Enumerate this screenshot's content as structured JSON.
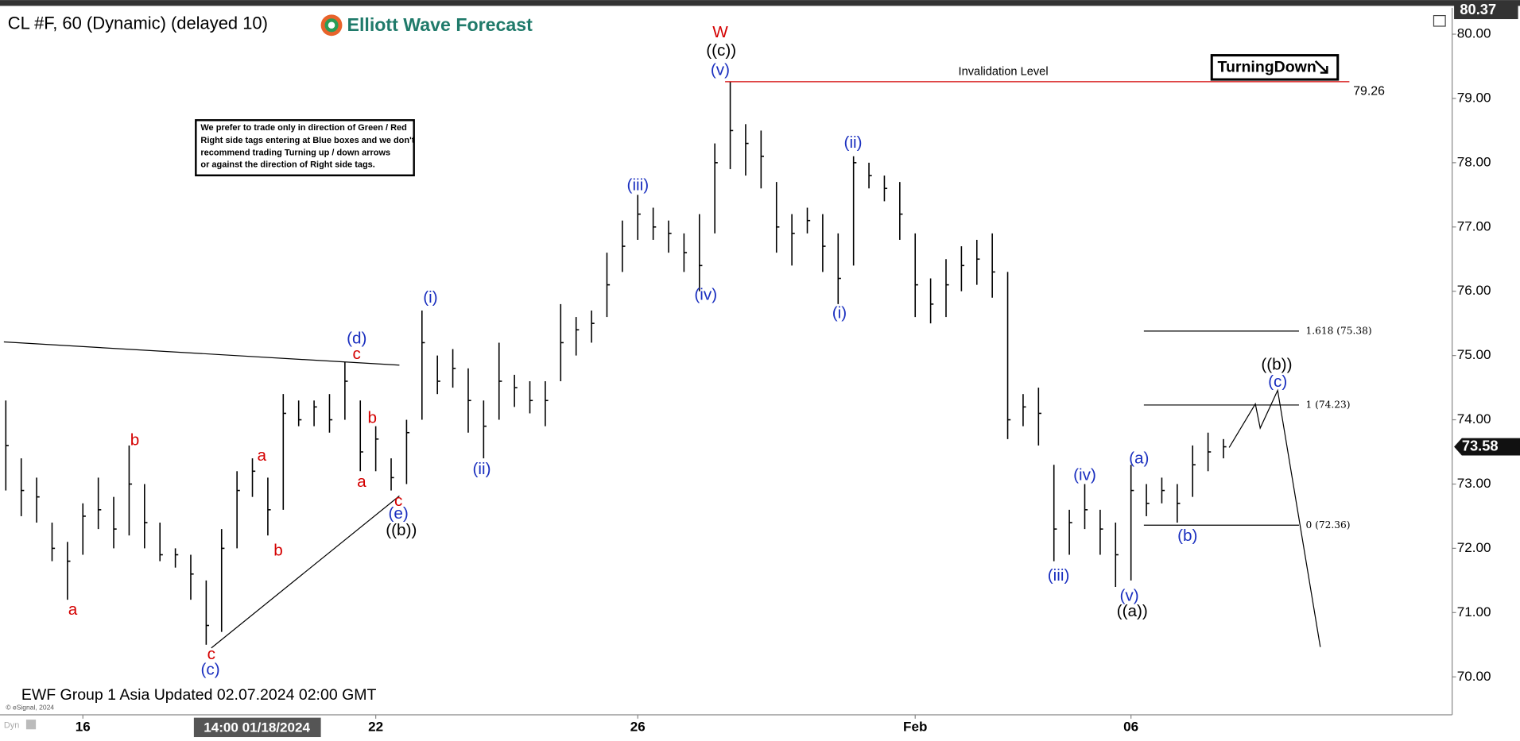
{
  "chart_data": {
    "type": "ohlc",
    "title": "CL #F, 60 (Dynamic) (delayed 10)",
    "brand": "Elliott Wave Forecast",
    "note": [
      "We prefer to trade only in direction of Green / Red",
      "Right side tags entering at Blue boxes and we don't",
      "recommend trading Turning up / down arrows",
      "or against the direction of Right side tags."
    ],
    "badge": "TurningDown",
    "footer": "EWF Group 1 Asia Updated 02.07.2024 02:00 GMT",
    "copyright": "© eSignal, 2024",
    "crosshair_label": "14:00 01/18/2024",
    "mode_label": "Dyn",
    "color": "#000000",
    "categories": [
      null,
      null,
      null,
      null,
      null,
      "16",
      null,
      null,
      null,
      null,
      null,
      null,
      null,
      null,
      null,
      null,
      null,
      null,
      null,
      null,
      null,
      null,
      null,
      null,
      "22",
      null,
      null,
      null,
      null,
      null,
      null,
      null,
      null,
      null,
      null,
      null,
      null,
      null,
      null,
      null,
      null,
      "26",
      null,
      null,
      null,
      null,
      null,
      null,
      null,
      null,
      null,
      null,
      null,
      null,
      null,
      null,
      null,
      null,
      null,
      "Feb",
      null,
      null,
      null,
      null,
      null,
      null,
      null,
      null,
      null,
      null,
      null,
      null,
      null,
      "06",
      null,
      null,
      null,
      null,
      null,
      null
    ],
    "high": [
      74.3,
      73.4,
      73.1,
      72.4,
      72.1,
      72.7,
      73.1,
      72.8,
      73.6,
      73.0,
      72.4,
      72.0,
      71.9,
      71.5,
      72.3,
      73.2,
      73.4,
      73.1,
      74.4,
      74.3,
      74.3,
      74.4,
      74.9,
      74.3,
      73.9,
      73.4,
      74.0,
      75.7,
      75.0,
      75.1,
      74.8,
      74.3,
      75.2,
      74.7,
      74.6,
      74.6,
      75.8,
      75.6,
      75.7,
      76.6,
      77.1,
      77.5,
      77.3,
      77.1,
      76.9,
      77.2,
      78.3,
      79.26,
      78.6,
      78.5,
      77.7,
      77.2,
      77.3,
      77.2,
      76.9,
      78.1,
      78.0,
      77.8,
      77.7,
      76.9,
      76.2,
      76.5,
      76.7,
      76.8,
      76.9,
      76.3,
      74.4,
      74.5,
      73.3,
      72.6,
      73.0,
      72.6,
      72.4,
      73.3,
      73.0,
      73.1,
      73.0,
      73.6,
      73.8,
      73.7
    ],
    "low": [
      72.9,
      72.5,
      72.4,
      71.8,
      71.2,
      71.9,
      72.3,
      72.0,
      72.2,
      72.0,
      71.8,
      71.7,
      71.2,
      70.5,
      70.7,
      72.0,
      72.8,
      72.2,
      72.6,
      73.9,
      73.9,
      73.8,
      74.0,
      73.2,
      73.2,
      72.9,
      73.0,
      74.0,
      74.4,
      74.5,
      73.8,
      73.4,
      74.0,
      74.2,
      74.1,
      73.9,
      74.6,
      75.0,
      75.2,
      75.6,
      76.3,
      76.8,
      76.8,
      76.6,
      76.3,
      76.0,
      76.9,
      77.9,
      77.8,
      77.6,
      76.6,
      76.4,
      76.9,
      76.3,
      75.8,
      76.4,
      77.6,
      77.4,
      76.8,
      75.6,
      75.5,
      75.6,
      76.0,
      76.1,
      75.9,
      73.7,
      73.9,
      73.6,
      71.8,
      71.9,
      72.3,
      71.9,
      71.4,
      71.5,
      72.5,
      72.7,
      72.4,
      72.8,
      73.2,
      73.4
    ],
    "close": [
      73.6,
      72.9,
      72.8,
      72.0,
      71.8,
      72.5,
      72.6,
      72.3,
      73.0,
      72.4,
      71.9,
      71.9,
      71.6,
      70.8,
      72.0,
      72.9,
      73.2,
      72.6,
      74.1,
      74.0,
      74.2,
      74.0,
      74.6,
      73.5,
      73.7,
      73.1,
      73.8,
      75.2,
      74.6,
      74.8,
      74.3,
      73.9,
      74.6,
      74.5,
      74.3,
      74.3,
      75.2,
      75.4,
      75.5,
      76.1,
      76.7,
      77.2,
      77.0,
      76.9,
      76.6,
      76.4,
      78.0,
      78.5,
      78.3,
      78.1,
      77.0,
      76.9,
      77.1,
      76.7,
      76.2,
      78.0,
      77.8,
      77.6,
      77.2,
      76.1,
      75.8,
      76.1,
      76.4,
      76.5,
      76.3,
      74.0,
      74.2,
      74.1,
      72.3,
      72.4,
      72.6,
      72.3,
      71.9,
      72.9,
      72.7,
      72.9,
      72.7,
      73.3,
      73.5,
      73.58
    ],
    "ylim": [
      69.41,
      80.41
    ],
    "yticks": [
      {
        "value": 70,
        "label": "70.00"
      },
      {
        "value": 71,
        "label": "71.00"
      },
      {
        "value": 72,
        "label": "72.00"
      },
      {
        "value": 73,
        "label": "73.00"
      },
      {
        "value": 74,
        "label": "74.00"
      },
      {
        "value": 75,
        "label": "75.00"
      },
      {
        "value": 76,
        "label": "76.00"
      },
      {
        "value": 77,
        "label": "77.00"
      },
      {
        "value": 78,
        "label": "78.00"
      },
      {
        "value": 79,
        "label": "79.00"
      },
      {
        "value": 80,
        "label": "80.00"
      }
    ],
    "top_price": 80.37,
    "invalidation": {
      "value": 79.26,
      "text": "Invalidation Level"
    },
    "fib_levels": [
      {
        "value": 75.38,
        "label": "1.618 (75.38)"
      },
      {
        "value": 74.23,
        "label": "1 (74.23)"
      },
      {
        "value": 72.36,
        "label": "0 (72.36)"
      }
    ],
    "annotations": [
      {
        "text": "a",
        "color": "#d40000"
      },
      {
        "text": "b",
        "color": "#d40000"
      },
      {
        "text": "c",
        "color": "#d40000"
      },
      {
        "text": "(c)",
        "color": "#1a2fbf"
      },
      {
        "text": "a",
        "color": "#d40000"
      },
      {
        "text": "b",
        "color": "#d40000"
      },
      {
        "text": "(d)",
        "color": "#1a2fbf"
      },
      {
        "text": "c",
        "color": "#d40000"
      },
      {
        "text": "b",
        "color": "#d40000"
      },
      {
        "text": "a",
        "color": "#d40000"
      },
      {
        "text": "c",
        "color": "#d40000"
      },
      {
        "text": "(e)",
        "color": "#1a2fbf"
      },
      {
        "text": "((b))",
        "color": "#000000"
      },
      {
        "text": "(i)",
        "color": "#1a2fbf"
      },
      {
        "text": "(ii)",
        "color": "#1a2fbf"
      },
      {
        "text": "(iii)",
        "color": "#1a2fbf"
      },
      {
        "text": "(iv)",
        "color": "#1a2fbf"
      },
      {
        "text": "(v)",
        "color": "#1a2fbf"
      },
      {
        "text": "((c))",
        "color": "#000000"
      },
      {
        "text": "W",
        "color": "#d40000"
      },
      {
        "text": "(ii)",
        "color": "#1a2fbf"
      },
      {
        "text": "(i)",
        "color": "#1a2fbf"
      },
      {
        "text": "(iii)",
        "color": "#1a2fbf"
      },
      {
        "text": "(iv)",
        "color": "#1a2fbf"
      },
      {
        "text": "(v)",
        "color": "#1a2fbf"
      },
      {
        "text": "((a))",
        "color": "#000000"
      },
      {
        "text": "(a)",
        "color": "#1a2fbf"
      },
      {
        "text": "(b)",
        "color": "#1a2fbf"
      },
      {
        "text": "((b))",
        "color": "#000000"
      },
      {
        "text": "(c)",
        "color": "#1a2fbf"
      }
    ]
  }
}
